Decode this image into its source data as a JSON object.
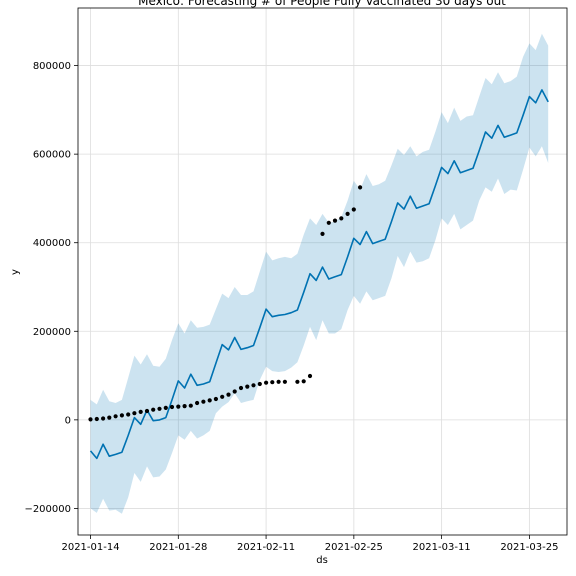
{
  "chart_data": {
    "type": "line",
    "title": "Mexico: Forecasting # of People Fully Vaccinated 30 days out",
    "xlabel": "ds",
    "ylabel": "y",
    "xlim": [
      "2021-01-12",
      "2021-03-31"
    ],
    "ylim": [
      -260000,
      930000
    ],
    "grid": true,
    "x_ticks": [
      "2021-01-14",
      "2021-01-28",
      "2021-02-11",
      "2021-02-25",
      "2021-03-11",
      "2021-03-25"
    ],
    "y_ticks": [
      -200000,
      0,
      200000,
      400000,
      600000,
      800000
    ],
    "y_tick_labels": [
      "−200000",
      "0",
      "200000",
      "400000",
      "600000",
      "800000"
    ],
    "colors": {
      "forecast": "#0072B2",
      "interval": "#0072B2",
      "observed": "#000000",
      "grid": "#dddddd"
    },
    "series": [
      {
        "kind": "observed",
        "x": [
          "2021-01-14",
          "2021-01-15",
          "2021-01-16",
          "2021-01-17",
          "2021-01-18",
          "2021-01-19",
          "2021-01-20",
          "2021-01-21",
          "2021-01-22",
          "2021-01-23",
          "2021-01-24",
          "2021-01-25",
          "2021-01-26",
          "2021-01-27",
          "2021-01-28",
          "2021-01-29",
          "2021-01-30",
          "2021-01-31",
          "2021-02-01",
          "2021-02-02",
          "2021-02-03",
          "2021-02-04",
          "2021-02-05",
          "2021-02-06",
          "2021-02-07",
          "2021-02-08",
          "2021-02-09",
          "2021-02-10",
          "2021-02-11",
          "2021-02-12",
          "2021-02-13",
          "2021-02-14",
          "2021-02-16",
          "2021-02-17",
          "2021-02-18",
          "2021-02-20",
          "2021-02-21",
          "2021-02-22",
          "2021-02-23",
          "2021-02-24",
          "2021-02-25",
          "2021-02-26"
        ],
        "y": [
          1000,
          2000,
          3000,
          5000,
          8000,
          10000,
          12000,
          15000,
          18000,
          20000,
          23000,
          25000,
          27000,
          29000,
          30000,
          31000,
          32000,
          38000,
          41000,
          44000,
          47000,
          52000,
          57000,
          64000,
          72000,
          75000,
          78000,
          81000,
          84000,
          85000,
          86000,
          86000,
          86000,
          87000,
          99000,
          420000,
          445000,
          450000,
          455000,
          465000,
          475000,
          525000
        ]
      },
      {
        "kind": "forecast",
        "x": [
          "2021-01-14",
          "2021-01-15",
          "2021-01-16",
          "2021-01-17",
          "2021-01-18",
          "2021-01-19",
          "2021-01-20",
          "2021-01-21",
          "2021-01-22",
          "2021-01-23",
          "2021-01-24",
          "2021-01-25",
          "2021-01-26",
          "2021-01-27",
          "2021-01-28",
          "2021-01-29",
          "2021-01-30",
          "2021-01-31",
          "2021-02-01",
          "2021-02-02",
          "2021-02-03",
          "2021-02-04",
          "2021-02-05",
          "2021-02-06",
          "2021-02-07",
          "2021-02-08",
          "2021-02-09",
          "2021-02-10",
          "2021-02-11",
          "2021-02-12",
          "2021-02-13",
          "2021-02-14",
          "2021-02-15",
          "2021-02-16",
          "2021-02-17",
          "2021-02-18",
          "2021-02-19",
          "2021-02-20",
          "2021-02-21",
          "2021-02-22",
          "2021-02-23",
          "2021-02-24",
          "2021-02-25",
          "2021-02-26",
          "2021-02-27",
          "2021-02-28",
          "2021-03-01",
          "2021-03-02",
          "2021-03-03",
          "2021-03-04",
          "2021-03-05",
          "2021-03-06",
          "2021-03-07",
          "2021-03-08",
          "2021-03-09",
          "2021-03-10",
          "2021-03-11",
          "2021-03-12",
          "2021-03-13",
          "2021-03-14",
          "2021-03-15",
          "2021-03-16",
          "2021-03-17",
          "2021-03-18",
          "2021-03-19",
          "2021-03-20",
          "2021-03-21",
          "2021-03-22",
          "2021-03-23",
          "2021-03-24",
          "2021-03-25",
          "2021-03-26",
          "2021-03-27",
          "2021-03-28"
        ],
        "y": [
          -70000,
          -87000,
          -55000,
          -82000,
          -78000,
          -73000,
          -35000,
          5000,
          -10000,
          22000,
          -2000,
          0,
          5000,
          45000,
          88000,
          72000,
          103000,
          78000,
          81000,
          86000,
          128000,
          170000,
          158000,
          186000,
          159000,
          163000,
          168000,
          208000,
          250000,
          233000,
          236000,
          238000,
          242000,
          248000,
          288000,
          330000,
          315000,
          345000,
          318000,
          323000,
          328000,
          368000,
          410000,
          396000,
          425000,
          398000,
          403000,
          408000,
          448000,
          490000,
          476000,
          505000,
          478000,
          483000,
          488000,
          528000,
          570000,
          556000,
          585000,
          558000,
          563000,
          568000,
          608000,
          650000,
          636000,
          665000,
          638000,
          643000,
          648000,
          688000,
          730000,
          716000,
          745000,
          718000
        ]
      },
      {
        "kind": "interval_upper",
        "x": [
          "2021-01-14",
          "2021-01-15",
          "2021-01-16",
          "2021-01-17",
          "2021-01-18",
          "2021-01-19",
          "2021-01-20",
          "2021-01-21",
          "2021-01-22",
          "2021-01-23",
          "2021-01-24",
          "2021-01-25",
          "2021-01-26",
          "2021-01-27",
          "2021-01-28",
          "2021-01-29",
          "2021-01-30",
          "2021-01-31",
          "2021-02-01",
          "2021-02-02",
          "2021-02-03",
          "2021-02-04",
          "2021-02-05",
          "2021-02-06",
          "2021-02-07",
          "2021-02-08",
          "2021-02-09",
          "2021-02-10",
          "2021-02-11",
          "2021-02-12",
          "2021-02-13",
          "2021-02-14",
          "2021-02-15",
          "2021-02-16",
          "2021-02-17",
          "2021-02-18",
          "2021-02-19",
          "2021-02-20",
          "2021-02-21",
          "2021-02-22",
          "2021-02-23",
          "2021-02-24",
          "2021-02-25",
          "2021-02-26",
          "2021-02-27",
          "2021-02-28",
          "2021-03-01",
          "2021-03-02",
          "2021-03-03",
          "2021-03-04",
          "2021-03-05",
          "2021-03-06",
          "2021-03-07",
          "2021-03-08",
          "2021-03-09",
          "2021-03-10",
          "2021-03-11",
          "2021-03-12",
          "2021-03-13",
          "2021-03-14",
          "2021-03-15",
          "2021-03-16",
          "2021-03-17",
          "2021-03-18",
          "2021-03-19",
          "2021-03-20",
          "2021-03-21",
          "2021-03-22",
          "2021-03-23",
          "2021-03-24",
          "2021-03-25",
          "2021-03-26",
          "2021-03-27",
          "2021-03-28"
        ],
        "y": [
          45000,
          35000,
          68000,
          42000,
          38000,
          45000,
          95000,
          145000,
          125000,
          148000,
          122000,
          120000,
          138000,
          180000,
          218000,
          195000,
          225000,
          208000,
          210000,
          215000,
          250000,
          285000,
          275000,
          300000,
          282000,
          282000,
          290000,
          335000,
          380000,
          360000,
          365000,
          368000,
          365000,
          375000,
          418000,
          455000,
          440000,
          465000,
          445000,
          448000,
          458000,
          495000,
          540000,
          520000,
          555000,
          528000,
          532000,
          540000,
          575000,
          612000,
          598000,
          618000,
          595000,
          605000,
          610000,
          650000,
          695000,
          670000,
          705000,
          675000,
          685000,
          688000,
          730000,
          772000,
          758000,
          785000,
          760000,
          765000,
          775000,
          820000,
          850000,
          835000,
          872000,
          845000
        ]
      },
      {
        "kind": "interval_lower",
        "x": [
          "2021-01-14",
          "2021-01-15",
          "2021-01-16",
          "2021-01-17",
          "2021-01-18",
          "2021-01-19",
          "2021-01-20",
          "2021-01-21",
          "2021-01-22",
          "2021-01-23",
          "2021-01-24",
          "2021-01-25",
          "2021-01-26",
          "2021-01-27",
          "2021-01-28",
          "2021-01-29",
          "2021-01-30",
          "2021-01-31",
          "2021-02-01",
          "2021-02-02",
          "2021-02-03",
          "2021-02-04",
          "2021-02-05",
          "2021-02-06",
          "2021-02-07",
          "2021-02-08",
          "2021-02-09",
          "2021-02-10",
          "2021-02-11",
          "2021-02-12",
          "2021-02-13",
          "2021-02-14",
          "2021-02-15",
          "2021-02-16",
          "2021-02-17",
          "2021-02-18",
          "2021-02-19",
          "2021-02-20",
          "2021-02-21",
          "2021-02-22",
          "2021-02-23",
          "2021-02-24",
          "2021-02-25",
          "2021-02-26",
          "2021-02-27",
          "2021-02-28",
          "2021-03-01",
          "2021-03-02",
          "2021-03-03",
          "2021-03-04",
          "2021-03-05",
          "2021-03-06",
          "2021-03-07",
          "2021-03-08",
          "2021-03-09",
          "2021-03-10",
          "2021-03-11",
          "2021-03-12",
          "2021-03-13",
          "2021-03-14",
          "2021-03-15",
          "2021-03-16",
          "2021-03-17",
          "2021-03-18",
          "2021-03-19",
          "2021-03-20",
          "2021-03-21",
          "2021-03-22",
          "2021-03-23",
          "2021-03-24",
          "2021-03-25",
          "2021-03-26",
          "2021-03-27",
          "2021-03-28"
        ],
        "y": [
          -200000,
          -210000,
          -178000,
          -205000,
          -203000,
          -212000,
          -175000,
          -120000,
          -140000,
          -105000,
          -130000,
          -128000,
          -112000,
          -75000,
          -35000,
          -45000,
          -25000,
          -42000,
          -35000,
          -25000,
          15000,
          30000,
          40000,
          60000,
          38000,
          42000,
          45000,
          90000,
          120000,
          110000,
          108000,
          110000,
          118000,
          130000,
          168000,
          210000,
          180000,
          225000,
          195000,
          195000,
          205000,
          248000,
          280000,
          262000,
          290000,
          270000,
          275000,
          280000,
          320000,
          370000,
          345000,
          380000,
          355000,
          358000,
          365000,
          405000,
          455000,
          440000,
          465000,
          430000,
          440000,
          450000,
          495000,
          525000,
          515000,
          545000,
          510000,
          520000,
          518000,
          565000,
          615000,
          595000,
          618000,
          580000
        ]
      }
    ]
  }
}
